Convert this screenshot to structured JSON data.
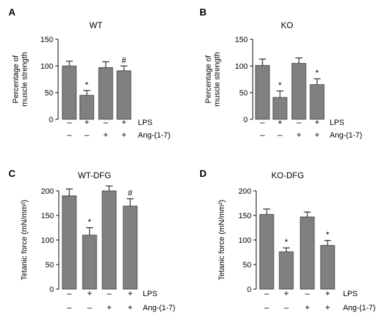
{
  "colors": {
    "bar": "#808080",
    "bar_edge": "#3a3a3a"
  },
  "chart_data": [
    {
      "type": "bar",
      "panel": "A",
      "title": "WT",
      "ylabel": [
        "Percentage of",
        "muscle strength"
      ],
      "ylim": [
        0,
        150
      ],
      "yticks": [
        0,
        50,
        100,
        150
      ],
      "values": [
        100,
        45,
        97,
        91
      ],
      "errors": [
        9,
        9,
        11,
        9
      ],
      "annotations": [
        "",
        "*",
        "",
        "#"
      ],
      "conditions": [
        {
          "label": "LPS",
          "signs": [
            "–",
            "+",
            "–",
            "+"
          ]
        },
        {
          "label": "Ang-(1-7)",
          "signs": [
            "–",
            "–",
            "+",
            "+"
          ]
        }
      ]
    },
    {
      "type": "bar",
      "panel": "B",
      "title": "KO",
      "ylabel": [
        "Percentage of",
        "muscle strength"
      ],
      "ylim": [
        0,
        150
      ],
      "yticks": [
        0,
        50,
        100,
        150
      ],
      "values": [
        101,
        41,
        105,
        65
      ],
      "errors": [
        12,
        12,
        10,
        11
      ],
      "annotations": [
        "",
        "*",
        "",
        "*"
      ],
      "conditions": [
        {
          "label": "LPS",
          "signs": [
            "–",
            "+",
            "–",
            "+"
          ]
        },
        {
          "label": "Ang-(1-7)",
          "signs": [
            "–",
            "–",
            "+",
            "+"
          ]
        }
      ]
    },
    {
      "type": "bar",
      "panel": "C",
      "title": "WT-DFG",
      "ylabel": [
        "Tetanic force (mN/mm²)"
      ],
      "ylim": [
        0,
        200
      ],
      "yticks": [
        0,
        50,
        100,
        150,
        200
      ],
      "values": [
        190,
        110,
        200,
        169
      ],
      "errors": [
        14,
        15,
        10,
        15
      ],
      "annotations": [
        "",
        "*",
        "",
        "#"
      ],
      "conditions": [
        {
          "label": "LPS",
          "signs": [
            "–",
            "+",
            "–",
            "+"
          ]
        },
        {
          "label": "Ang-(1-7)",
          "signs": [
            "–",
            "–",
            "+",
            "+"
          ]
        }
      ]
    },
    {
      "type": "bar",
      "panel": "D",
      "title": "KO-DFG",
      "ylabel": [
        "Tetanic force (mN/mm²)"
      ],
      "ylim": [
        0,
        200
      ],
      "yticks": [
        0,
        50,
        100,
        150,
        200
      ],
      "values": [
        152,
        76,
        147,
        89
      ],
      "errors": [
        11,
        8,
        10,
        10
      ],
      "annotations": [
        "",
        "*",
        "",
        "*"
      ],
      "conditions": [
        {
          "label": "LPS",
          "signs": [
            "–",
            "+",
            "–",
            "+"
          ]
        },
        {
          "label": "Ang-(1-7)",
          "signs": [
            "–",
            "–",
            "+",
            "+"
          ]
        }
      ]
    }
  ]
}
